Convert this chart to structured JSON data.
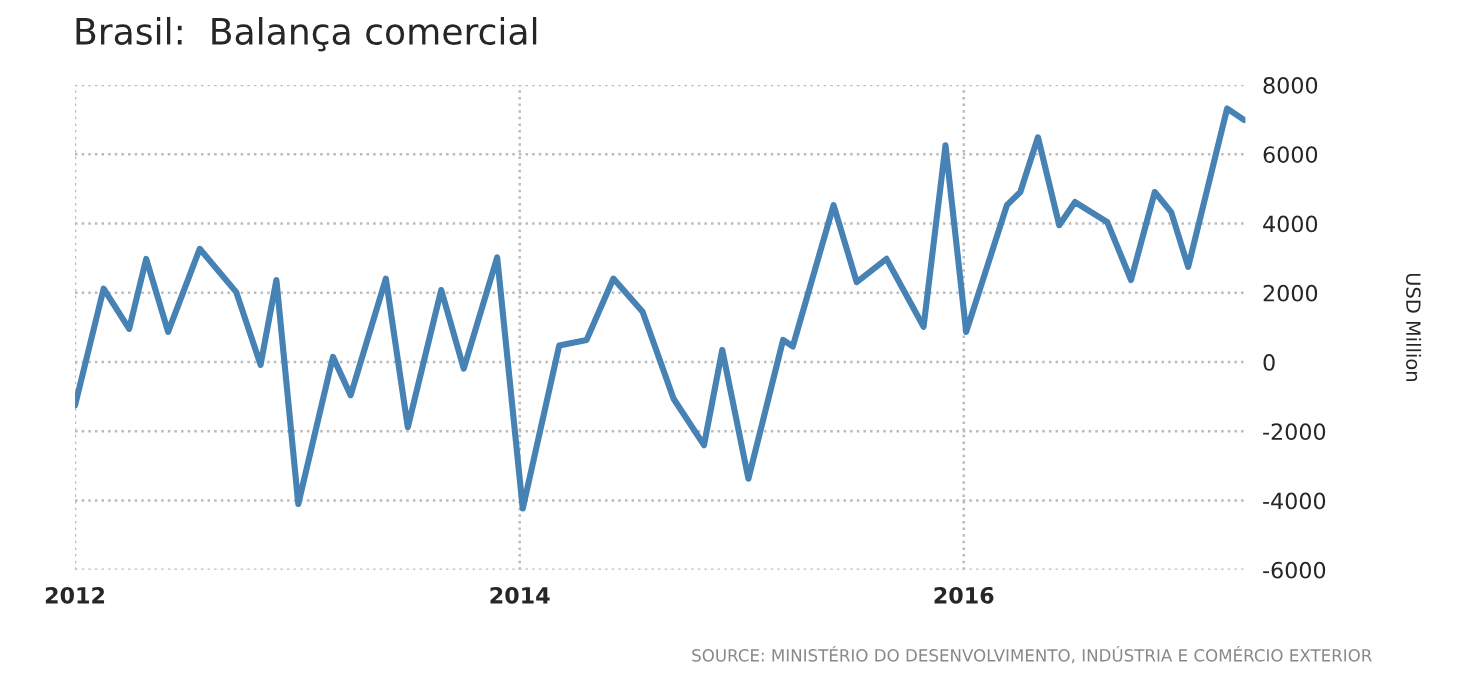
{
  "chart_data": {
    "type": "line",
    "title": "Brasil:  Balança comercial",
    "ylabel": "USD Million",
    "annotations": [
      "SOURCE: MINISTÉRIO DO DESENVOLVIMENTO, INDÚSTRIA E COMÉRCIO EXTERIOR"
    ],
    "x": [
      "2012-01-01",
      "2012-02-17",
      "2012-03-30",
      "2012-04-27",
      "2012-06-02",
      "2012-07-24",
      "2012-09-22",
      "2012-11-01",
      "2012-11-27",
      "2013-01-02",
      "2013-02-28",
      "2013-03-29",
      "2013-05-26",
      "2013-07-01",
      "2013-08-25",
      "2013-10-01",
      "2013-11-25",
      "2014-01-06",
      "2014-03-07",
      "2014-04-21",
      "2014-06-04",
      "2014-07-22",
      "2014-09-11",
      "2014-10-31",
      "2014-11-30",
      "2015-01-12",
      "2015-03-10",
      "2015-03-26",
      "2015-06-01",
      "2015-07-09",
      "2015-08-27",
      "2015-10-27",
      "2015-12-02",
      "2016-01-05",
      "2016-03-12",
      "2016-04-03",
      "2016-05-02",
      "2016-06-06",
      "2016-07-02",
      "2016-08-24",
      "2016-10-02",
      "2016-11-10",
      "2016-12-07",
      "2017-01-04",
      "2017-03-09",
      "2017-04-06"
    ],
    "series": [
      {
        "color": "#4682b4",
        "values": [
          -1250,
          2120,
          960,
          2980,
          870,
          3270,
          2020,
          -80,
          2370,
          -4100,
          150,
          -960,
          2410,
          -1880,
          2080,
          -190,
          3020,
          -4230,
          480,
          640,
          2410,
          1450,
          -1060,
          -2400,
          350,
          -3370,
          640,
          450,
          4530,
          2310,
          2980,
          1020,
          6260,
          870,
          4530,
          4910,
          6490,
          3950,
          4620,
          4040,
          2370,
          4910,
          4330,
          2750,
          7320,
          6990
        ]
      }
    ],
    "xlim": [
      "2012-01-01",
      "2017-04-08"
    ],
    "xticks": [
      "2012",
      "2014",
      "2016"
    ],
    "ylim": [
      -6000,
      8000
    ],
    "yticks": [
      -6000,
      -4000,
      -2000,
      0,
      2000,
      4000,
      6000,
      8000
    ],
    "grid": true,
    "marker": "none",
    "line_style": "solid"
  }
}
